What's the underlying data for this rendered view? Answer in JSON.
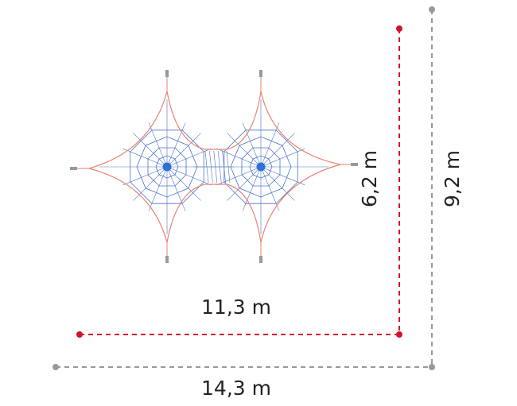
{
  "dimensions": {
    "inner_width": "11,3 m",
    "outer_width": "14,3 m",
    "inner_depth": "6,2 m",
    "outer_depth": "9,2 m"
  }
}
